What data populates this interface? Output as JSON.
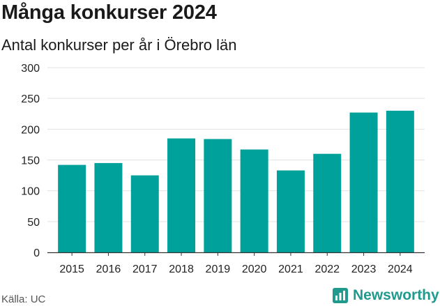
{
  "header": {
    "title": "Många konkurser 2024",
    "subtitle": "Antal konkurser per år i Örebro län"
  },
  "footer": {
    "source": "Källa: UC",
    "brand": "Newsworthy"
  },
  "colors": {
    "bar": "#00a19a",
    "grid": "#e3e3e3",
    "axis": "#333333",
    "brand": "#1f9a8d"
  },
  "chart_data": {
    "type": "bar",
    "categories": [
      "2015",
      "2016",
      "2017",
      "2018",
      "2019",
      "2020",
      "2021",
      "2022",
      "2023",
      "2024"
    ],
    "values": [
      142,
      145,
      125,
      185,
      184,
      167,
      133,
      160,
      227,
      230
    ],
    "ylim": [
      0,
      300
    ],
    "yticks": [
      0,
      50,
      100,
      150,
      200,
      250,
      300
    ],
    "grid": true,
    "legend": "none"
  }
}
